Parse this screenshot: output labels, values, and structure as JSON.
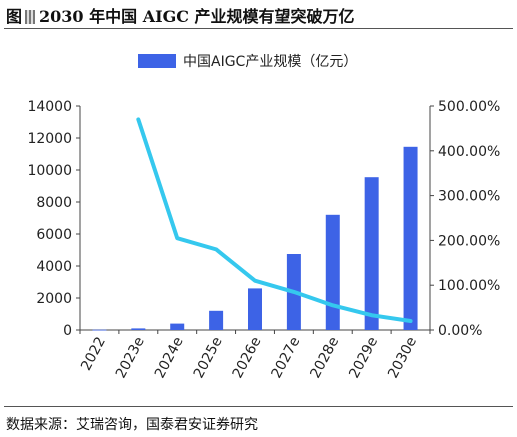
{
  "page": {
    "title_prefix": "图",
    "title": "2030 年中国 AIGC 产业规模有望突破万亿",
    "source": "数据来源：艾瑞咨询，国泰君安证券研究"
  },
  "chart_data": {
    "type": "bar",
    "categories": [
      "2022",
      "2023e",
      "2024e",
      "2025e",
      "2026e",
      "2027e",
      "2028e",
      "2029e",
      "2030e"
    ],
    "series": [
      {
        "name": "中国AIGC产业规模（亿元）",
        "type": "bar",
        "axis": "left",
        "color": "#3d63e6",
        "values": [
          20,
          100,
          400,
          1200,
          2600,
          4750,
          7200,
          9550,
          11450
        ]
      },
      {
        "name": "",
        "type": "line",
        "axis": "right",
        "color": "#35c8ee",
        "values": [
          null,
          4.7,
          2.05,
          1.8,
          1.1,
          0.85,
          0.55,
          0.33,
          0.2
        ]
      }
    ],
    "y_left": {
      "min": 0,
      "max": 14000,
      "step": 2000,
      "ticks": [
        "0",
        "2000",
        "4000",
        "6000",
        "8000",
        "10000",
        "12000",
        "14000"
      ]
    },
    "y_right": {
      "min": 0,
      "max": 5,
      "step": 1,
      "ticks": [
        "0.00%",
        "100.00%",
        "200.00%",
        "300.00%",
        "400.00%",
        "500.00%"
      ]
    },
    "legend": {
      "position": "top-center",
      "label": "中国AIGC产业规模（亿元）"
    },
    "grid": false
  }
}
